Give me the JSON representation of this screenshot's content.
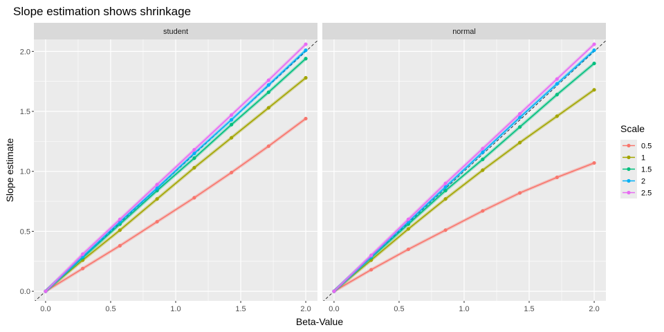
{
  "chart_data": {
    "type": "line",
    "title": "Slope estimation shows shrinkage",
    "xlabel": "Beta-Value",
    "ylabel": "Slope estimate",
    "xlim": [
      -0.09,
      2.09
    ],
    "ylim": [
      -0.08,
      2.1
    ],
    "x_ticks": [
      0,
      0.5,
      1,
      1.5,
      2
    ],
    "x_tick_labels": [
      "0.0",
      "0.5",
      "1.0",
      "1.5",
      "2.0"
    ],
    "y_ticks": [
      0,
      0.5,
      1,
      1.5,
      2
    ],
    "y_tick_labels": [
      "0.0",
      "0.5",
      "1.0",
      "1.5",
      "2.0"
    ],
    "grid": true,
    "reference_line": {
      "style": "dashed",
      "color": "#000000",
      "intercept": 0,
      "slope": 1
    },
    "legend": {
      "title": "Scale",
      "position": "right"
    },
    "x": [
      0,
      0.2857,
      0.5714,
      0.8571,
      1.1429,
      1.4286,
      1.7143,
      2.0
    ],
    "panels": [
      {
        "label": "student",
        "series": [
          {
            "name": "0.5",
            "color": "#F8766D",
            "values": [
              0.0,
              0.19,
              0.38,
              0.58,
              0.78,
              0.99,
              1.21,
              1.44
            ]
          },
          {
            "name": "1",
            "color": "#A3A500",
            "values": [
              0.0,
              0.26,
              0.51,
              0.77,
              1.03,
              1.28,
              1.53,
              1.78
            ]
          },
          {
            "name": "1.5",
            "color": "#00BF7D",
            "values": [
              0.0,
              0.28,
              0.56,
              0.84,
              1.11,
              1.39,
              1.66,
              1.94
            ]
          },
          {
            "name": "2",
            "color": "#00B0F6",
            "values": [
              0.0,
              0.29,
              0.58,
              0.86,
              1.15,
              1.43,
              1.72,
              2.01
            ]
          },
          {
            "name": "2.5",
            "color": "#E76BF3",
            "values": [
              0.0,
              0.31,
              0.6,
              0.89,
              1.18,
              1.47,
              1.76,
              2.06
            ]
          }
        ]
      },
      {
        "label": "normal",
        "series": [
          {
            "name": "0.5",
            "color": "#F8766D",
            "values": [
              0.0,
              0.18,
              0.35,
              0.51,
              0.67,
              0.82,
              0.95,
              1.07
            ]
          },
          {
            "name": "1",
            "color": "#A3A500",
            "values": [
              0.0,
              0.26,
              0.52,
              0.77,
              1.01,
              1.24,
              1.46,
              1.68
            ]
          },
          {
            "name": "1.5",
            "color": "#00BF7D",
            "values": [
              0.0,
              0.28,
              0.56,
              0.84,
              1.1,
              1.37,
              1.64,
              1.9
            ]
          },
          {
            "name": "2",
            "color": "#00B0F6",
            "values": [
              0.0,
              0.29,
              0.58,
              0.87,
              1.16,
              1.45,
              1.73,
              2.01
            ]
          },
          {
            "name": "2.5",
            "color": "#E76BF3",
            "values": [
              0.0,
              0.3,
              0.6,
              0.9,
              1.19,
              1.48,
              1.77,
              2.06
            ]
          }
        ]
      }
    ]
  }
}
